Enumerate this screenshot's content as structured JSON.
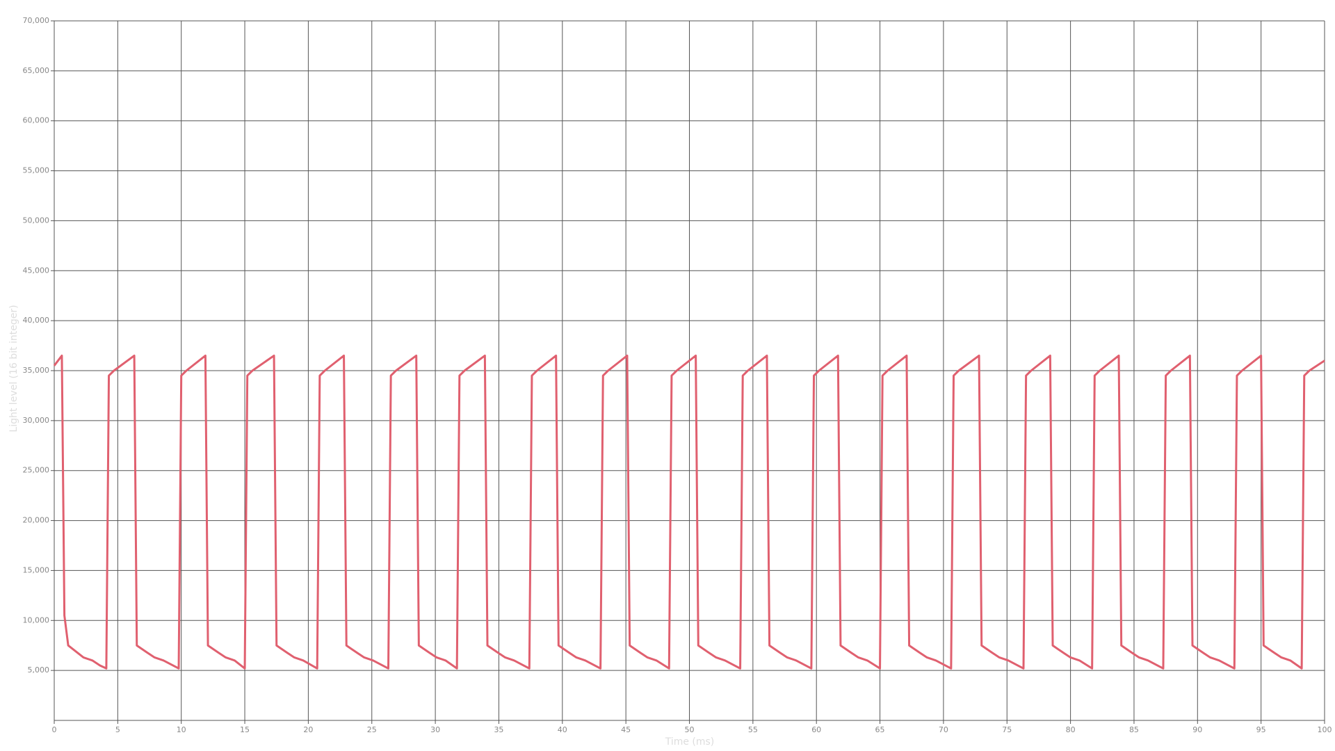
{
  "chart_data": {
    "type": "line",
    "xlabel": "Time (ms)",
    "ylabel": "Light level (16 bit integer)",
    "xlim": [
      0,
      100
    ],
    "ylim": [
      0,
      70000
    ],
    "xticks": [
      0,
      5,
      10,
      15,
      20,
      25,
      30,
      35,
      40,
      45,
      50,
      55,
      60,
      65,
      70,
      75,
      80,
      85,
      90,
      95,
      100
    ],
    "yticks": [
      {
        "value": 5000,
        "label": "5,000"
      },
      {
        "value": 10000,
        "label": "10,000"
      },
      {
        "value": 15000,
        "label": "15,000"
      },
      {
        "value": 20000,
        "label": "20,000"
      },
      {
        "value": 25000,
        "label": "25,000"
      },
      {
        "value": 30000,
        "label": "30,000"
      },
      {
        "value": 35000,
        "label": "35,000"
      },
      {
        "value": 40000,
        "label": "40,000"
      },
      {
        "value": 45000,
        "label": "45,000"
      },
      {
        "value": 50000,
        "label": "50,000"
      },
      {
        "value": 55000,
        "label": "55,000"
      },
      {
        "value": 60000,
        "label": "60,000"
      },
      {
        "value": 65000,
        "label": "65,000"
      },
      {
        "value": 70000,
        "label": "70,000"
      }
    ],
    "grid": true,
    "x": [
      0,
      0.6,
      0.8,
      1.1,
      2.3,
      3.0,
      3.6,
      4.1,
      4.3,
      4.7,
      6.3,
      6.5,
      7.3,
      7.9,
      8.6,
      9.8,
      10.0,
      10.4,
      11.9,
      12.1,
      12.9,
      13.5,
      14.2,
      15.0,
      15.2,
      15.6,
      17.3,
      17.5,
      18.3,
      18.9,
      19.6,
      20.7,
      20.9,
      21.3,
      22.8,
      23.0,
      23.8,
      24.4,
      25.1,
      26.3,
      26.5,
      26.9,
      28.5,
      28.7,
      29.5,
      30.1,
      30.8,
      31.7,
      31.9,
      32.3,
      33.9,
      34.1,
      34.9,
      35.5,
      36.2,
      37.4,
      37.6,
      38.0,
      39.5,
      39.7,
      40.5,
      41.1,
      41.8,
      43.0,
      43.2,
      43.6,
      45.1,
      45.3,
      46.1,
      46.7,
      47.4,
      48.4,
      48.6,
      49.0,
      50.5,
      50.7,
      51.5,
      52.1,
      52.8,
      54.0,
      54.2,
      54.6,
      56.1,
      56.3,
      57.1,
      57.7,
      58.4,
      59.6,
      59.8,
      60.2,
      61.7,
      61.9,
      62.7,
      63.3,
      64.0,
      65.0,
      65.2,
      65.6,
      67.1,
      67.3,
      68.1,
      68.7,
      69.4,
      70.6,
      70.8,
      71.2,
      72.8,
      73.0,
      73.8,
      74.4,
      75.1,
      76.3,
      76.5,
      76.9,
      78.4,
      78.6,
      79.4,
      80.0,
      80.7,
      81.7,
      81.9,
      82.3,
      83.8,
      84.0,
      84.8,
      85.4,
      86.1,
      87.3,
      87.5,
      87.9,
      89.4,
      89.6,
      90.4,
      91.0,
      91.7,
      92.9,
      93.1,
      93.5,
      95.0,
      95.2,
      96.0,
      96.6,
      97.3,
      98.2,
      98.4,
      98.8,
      100
    ],
    "series": [
      {
        "color": "#e0606f",
        "values": [
          35500,
          36500,
          10500,
          7500,
          6300,
          6000,
          5500,
          5200,
          34500,
          35000,
          36500,
          7500,
          6800,
          6300,
          6000,
          5200,
          34500,
          35000,
          36500,
          7500,
          6800,
          6300,
          6000,
          5200,
          34500,
          35000,
          36500,
          7500,
          6800,
          6300,
          6000,
          5200,
          34500,
          35000,
          36500,
          7500,
          6800,
          6300,
          6000,
          5200,
          34500,
          35000,
          36500,
          7500,
          6800,
          6300,
          6000,
          5200,
          34500,
          35000,
          36500,
          7500,
          6800,
          6300,
          6000,
          5200,
          34500,
          35000,
          36500,
          7500,
          6800,
          6300,
          6000,
          5200,
          34500,
          35000,
          36500,
          7500,
          6800,
          6300,
          6000,
          5200,
          34500,
          35000,
          36500,
          7500,
          6800,
          6300,
          6000,
          5200,
          34500,
          35000,
          36500,
          7500,
          6800,
          6300,
          6000,
          5200,
          34500,
          35000,
          36500,
          7500,
          6800,
          6300,
          6000,
          5200,
          34500,
          35000,
          36500,
          7500,
          6800,
          6300,
          6000,
          5200,
          34500,
          35000,
          36500,
          7500,
          6800,
          6300,
          6000,
          5200,
          34500,
          35000,
          36500,
          7500,
          6800,
          6300,
          6000,
          5200,
          34500,
          35000,
          36500,
          7500,
          6800,
          6300,
          6000,
          5200,
          34500,
          35000,
          36500,
          7500,
          6800,
          6300,
          6000,
          5200,
          34500,
          35000,
          36500,
          7500,
          6800,
          6300,
          6000,
          5200,
          34500,
          35000,
          36000
        ]
      }
    ]
  }
}
